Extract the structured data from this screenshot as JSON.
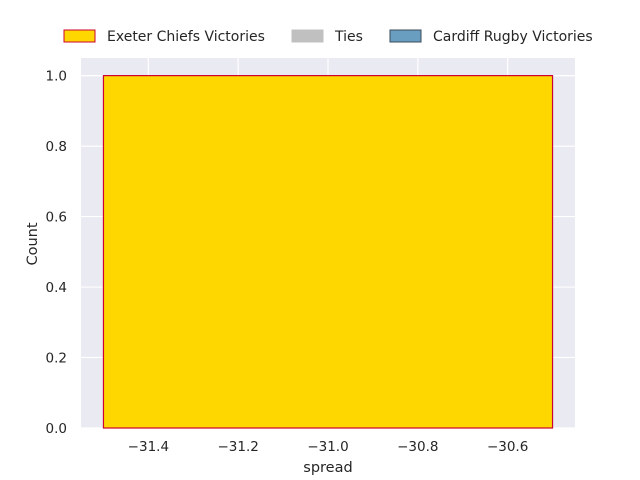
{
  "chart_data": {
    "type": "bar",
    "xlabel": "spread",
    "ylabel": "Count",
    "xlim": [
      -31.55,
      -30.45
    ],
    "ylim": [
      0,
      1.05
    ],
    "xticks": [
      -31.4,
      -31.2,
      -31.0,
      -30.8,
      -30.6
    ],
    "xtick_labels": [
      "−31.4",
      "−31.2",
      "−31.0",
      "−30.8",
      "−30.6"
    ],
    "yticks": [
      0.0,
      0.2,
      0.4,
      0.6,
      0.8,
      1.0
    ],
    "ytick_labels": [
      "0.0",
      "0.2",
      "0.4",
      "0.6",
      "0.8",
      "1.0"
    ],
    "grid": true,
    "legend_position": "top",
    "series": [
      {
        "name": "Exeter Chiefs Victories",
        "color": "#ffd700",
        "edge_color": "#cc0033",
        "bars": [
          {
            "x_start": -31.5,
            "x_end": -30.5,
            "value": 1
          }
        ]
      },
      {
        "name": "Ties",
        "color": "#c0c0c0",
        "edge_color": "#c0c0c0",
        "bars": []
      },
      {
        "name": "Cardiff Rugby Victories",
        "color": "#6a9ec0",
        "edge_color": "#3a4a5a",
        "bars": []
      }
    ],
    "background_color": "#eaeaf2",
    "grid_color": "#ffffff"
  }
}
